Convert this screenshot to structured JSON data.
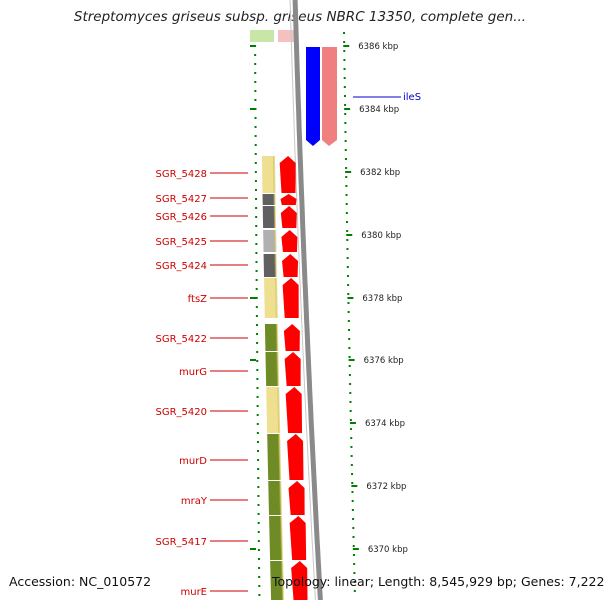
{
  "title": "Streptomyces griseus subsp. griseus NBRC 13350, complete gen...",
  "footer": {
    "accession": "Accession: NC_010572",
    "topology": "Topology: linear; Length: 8,545,929 bp; Genes: 7,222"
  },
  "colors": {
    "forward_strand": "#ff0000",
    "reverse_strand": "#0000ff",
    "reverse_strand_light": "#f08080",
    "label_red": "#cc0000",
    "label_blue": "#0000cc",
    "scale_tick": "#008000",
    "backbone": "#808080"
  },
  "scale_labels": [
    "6386 kbp",
    "6384 kbp",
    "6382 kbp",
    "6380 kbp",
    "6378 kbp",
    "6376 kbp",
    "6374 kbp",
    "6372 kbp",
    "6370 kbp"
  ],
  "gene_labels_left": [
    "SGR_5428",
    "SGR_5427",
    "SGR_5426",
    "SGR_5425",
    "SGR_5424",
    "ftsZ",
    "SGR_5422",
    "murG",
    "SGR_5420",
    "murD",
    "mraY",
    "SGR_5417",
    "murE"
  ],
  "gene_labels_right": [
    "ileS"
  ]
}
